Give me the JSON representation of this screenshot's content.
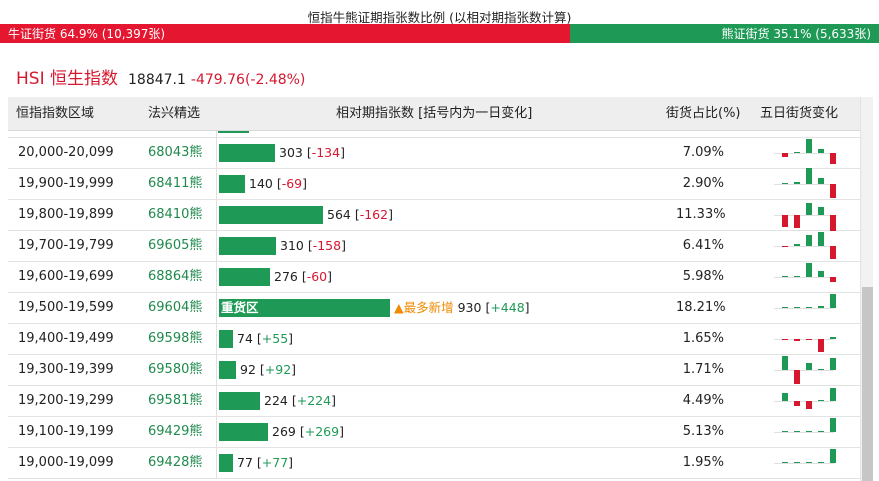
{
  "header": {
    "title": "恒指牛熊证期指张数比例 (以相对期指张数计算)"
  },
  "ratio": {
    "bull_label": "牛证街货 64.9% (10,397张)",
    "bear_label": "熊证街货 35.1% (5,633张)",
    "bull_share": 64.9,
    "bull_color": "#e5162f",
    "bear_color": "#1f9a56"
  },
  "index": {
    "name": "HSI 恒生指数",
    "price": "18847.1",
    "change": "-479.76(-2.48%)"
  },
  "table": {
    "headers": {
      "range": "恒指指数区域",
      "code": "法兴精选",
      "contracts": "相对期指张数 [括号内为一日变化]",
      "share": "街货占比(%)",
      "five_day": "五日街货变化"
    },
    "rows": [
      {
        "range": "20,000-20,099",
        "code": "68043熊",
        "contracts": 303,
        "contracts_text": "303",
        "delta": "-134",
        "share": "7.09%",
        "five_day": [
          -0.3,
          0,
          1.2,
          0.3,
          -0.9
        ]
      },
      {
        "range": "19,900-19,999",
        "code": "68411熊",
        "contracts": 140,
        "contracts_text": "140",
        "delta": "-69",
        "share": "2.90%",
        "five_day": [
          0.1,
          0.2,
          1.3,
          0.5,
          -1.2
        ]
      },
      {
        "range": "19,800-19,899",
        "code": "68410熊",
        "contracts": 564,
        "contracts_text": "564",
        "delta": "-162",
        "share": "11.33%",
        "five_day": [
          -1.0,
          -1.1,
          1.0,
          0.7,
          -1.3
        ]
      },
      {
        "range": "19,700-19,799",
        "code": "69605熊",
        "contracts": 310,
        "contracts_text": "310",
        "delta": "-158",
        "share": "6.41%",
        "five_day": [
          -0.1,
          0.2,
          0.9,
          1.2,
          -1.1
        ]
      },
      {
        "range": "19,600-19,699",
        "code": "68864熊",
        "contracts": 276,
        "contracts_text": "276",
        "delta": "-60",
        "share": "5.98%",
        "five_day": [
          0,
          0,
          1.2,
          0.5,
          -0.4
        ]
      },
      {
        "range": "19,500-19,599",
        "code": "69604熊",
        "contracts": 930,
        "contracts_text": "930",
        "delta": "+448",
        "share": "18.21%",
        "heavy_label": "重货区",
        "hot_label": "▲最多新增",
        "five_day": [
          0,
          0,
          0.1,
          0.2,
          1.2
        ]
      },
      {
        "range": "19,400-19,499",
        "code": "69598熊",
        "contracts": 74,
        "contracts_text": "74",
        "delta": "+55",
        "share": "1.65%",
        "five_day": [
          -0.1,
          -0.2,
          -0.1,
          -1.1,
          0.2
        ]
      },
      {
        "range": "19,300-19,399",
        "code": "69580熊",
        "contracts": 92,
        "contracts_text": "92",
        "delta": "+92",
        "share": "1.71%",
        "five_day": [
          1.2,
          -1.2,
          0.6,
          0,
          1.0
        ]
      },
      {
        "range": "19,200-19,299",
        "code": "69581熊",
        "contracts": 224,
        "contracts_text": "224",
        "delta": "+224",
        "share": "4.49%",
        "five_day": [
          0.7,
          -0.4,
          -0.7,
          0,
          1.1
        ]
      },
      {
        "range": "19,100-19,199",
        "code": "69429熊",
        "contracts": 269,
        "contracts_text": "269",
        "delta": "+269",
        "share": "5.13%",
        "five_day": [
          0,
          0,
          0,
          0,
          1.2
        ]
      },
      {
        "range": "19,000-19,099",
        "code": "69428熊",
        "contracts": 77,
        "contracts_text": "77",
        "delta": "+77",
        "share": "1.95%",
        "five_day": [
          0,
          0,
          0,
          0,
          1.2
        ]
      }
    ]
  },
  "colors": {
    "up_green": "#1f9a56",
    "down_red": "#d6182f"
  }
}
